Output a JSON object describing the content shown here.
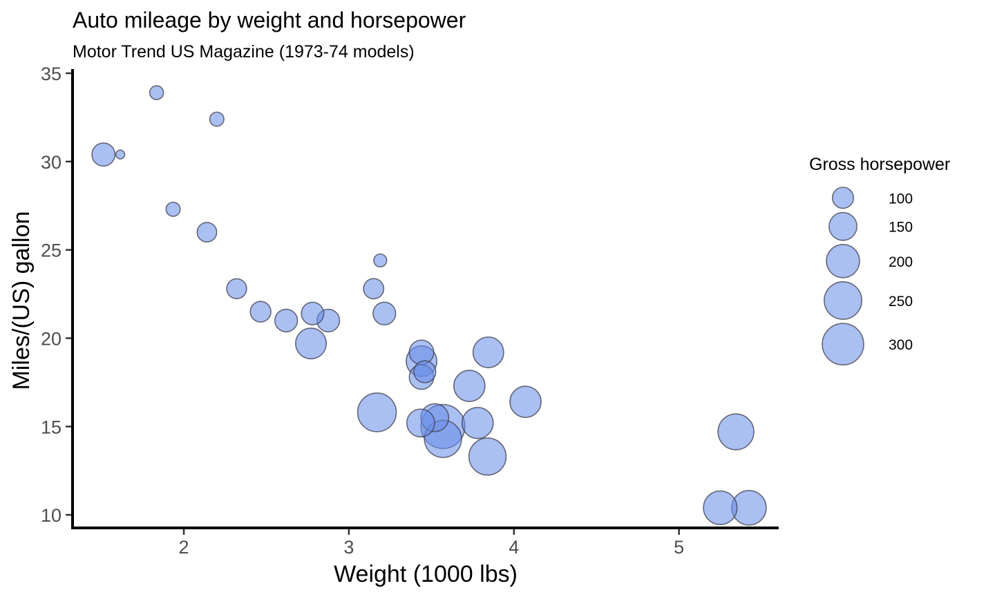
{
  "chart_data": {
    "type": "scatter",
    "title": "Auto mileage by weight and horsepower",
    "subtitle": "Motor Trend US Magazine (1973-74 models)",
    "xlabel": "Weight (1000 lbs)",
    "ylabel": "Miles/(US) gallon",
    "xlim": [
      1.33,
      5.6
    ],
    "ylim": [
      9.3,
      35
    ],
    "xticks": [
      "2",
      "3",
      "4",
      "5"
    ],
    "yticks": [
      "10",
      "15",
      "20",
      "25",
      "30",
      "35"
    ],
    "size_legend": {
      "title": "Gross horsepower",
      "values": [
        100,
        150,
        200,
        250,
        300
      ],
      "labels": [
        "100",
        "150",
        "200",
        "250",
        "300"
      ]
    },
    "grid": false,
    "marker_color": "#6a8ee8",
    "marker_edge_color": "#3d3d4d",
    "points": [
      {
        "wt": 2.62,
        "mpg": 21.0,
        "hp": 110
      },
      {
        "wt": 2.875,
        "mpg": 21.0,
        "hp": 110
      },
      {
        "wt": 2.32,
        "mpg": 22.8,
        "hp": 93
      },
      {
        "wt": 3.215,
        "mpg": 21.4,
        "hp": 110
      },
      {
        "wt": 3.44,
        "mpg": 18.7,
        "hp": 175
      },
      {
        "wt": 3.46,
        "mpg": 18.1,
        "hp": 105
      },
      {
        "wt": 3.57,
        "mpg": 14.3,
        "hp": 245
      },
      {
        "wt": 3.19,
        "mpg": 24.4,
        "hp": 62
      },
      {
        "wt": 3.15,
        "mpg": 22.8,
        "hp": 95
      },
      {
        "wt": 3.44,
        "mpg": 19.2,
        "hp": 123
      },
      {
        "wt": 3.44,
        "mpg": 17.8,
        "hp": 123
      },
      {
        "wt": 4.07,
        "mpg": 16.4,
        "hp": 180
      },
      {
        "wt": 3.73,
        "mpg": 17.3,
        "hp": 180
      },
      {
        "wt": 3.78,
        "mpg": 15.2,
        "hp": 180
      },
      {
        "wt": 5.25,
        "mpg": 10.4,
        "hp": 205
      },
      {
        "wt": 5.424,
        "mpg": 10.4,
        "hp": 215
      },
      {
        "wt": 5.345,
        "mpg": 14.7,
        "hp": 230
      },
      {
        "wt": 2.2,
        "mpg": 32.4,
        "hp": 66
      },
      {
        "wt": 1.615,
        "mpg": 30.4,
        "hp": 52
      },
      {
        "wt": 1.835,
        "mpg": 33.9,
        "hp": 65
      },
      {
        "wt": 2.465,
        "mpg": 21.5,
        "hp": 97
      },
      {
        "wt": 3.52,
        "mpg": 15.5,
        "hp": 150
      },
      {
        "wt": 3.435,
        "mpg": 15.2,
        "hp": 150
      },
      {
        "wt": 3.84,
        "mpg": 13.3,
        "hp": 245
      },
      {
        "wt": 3.845,
        "mpg": 19.2,
        "hp": 175
      },
      {
        "wt": 1.935,
        "mpg": 27.3,
        "hp": 66
      },
      {
        "wt": 2.14,
        "mpg": 26.0,
        "hp": 91
      },
      {
        "wt": 1.513,
        "mpg": 30.4,
        "hp": 113
      },
      {
        "wt": 3.17,
        "mpg": 15.8,
        "hp": 264
      },
      {
        "wt": 2.77,
        "mpg": 19.7,
        "hp": 175
      },
      {
        "wt": 3.57,
        "mpg": 15.0,
        "hp": 335
      },
      {
        "wt": 2.78,
        "mpg": 21.4,
        "hp": 109
      }
    ]
  }
}
